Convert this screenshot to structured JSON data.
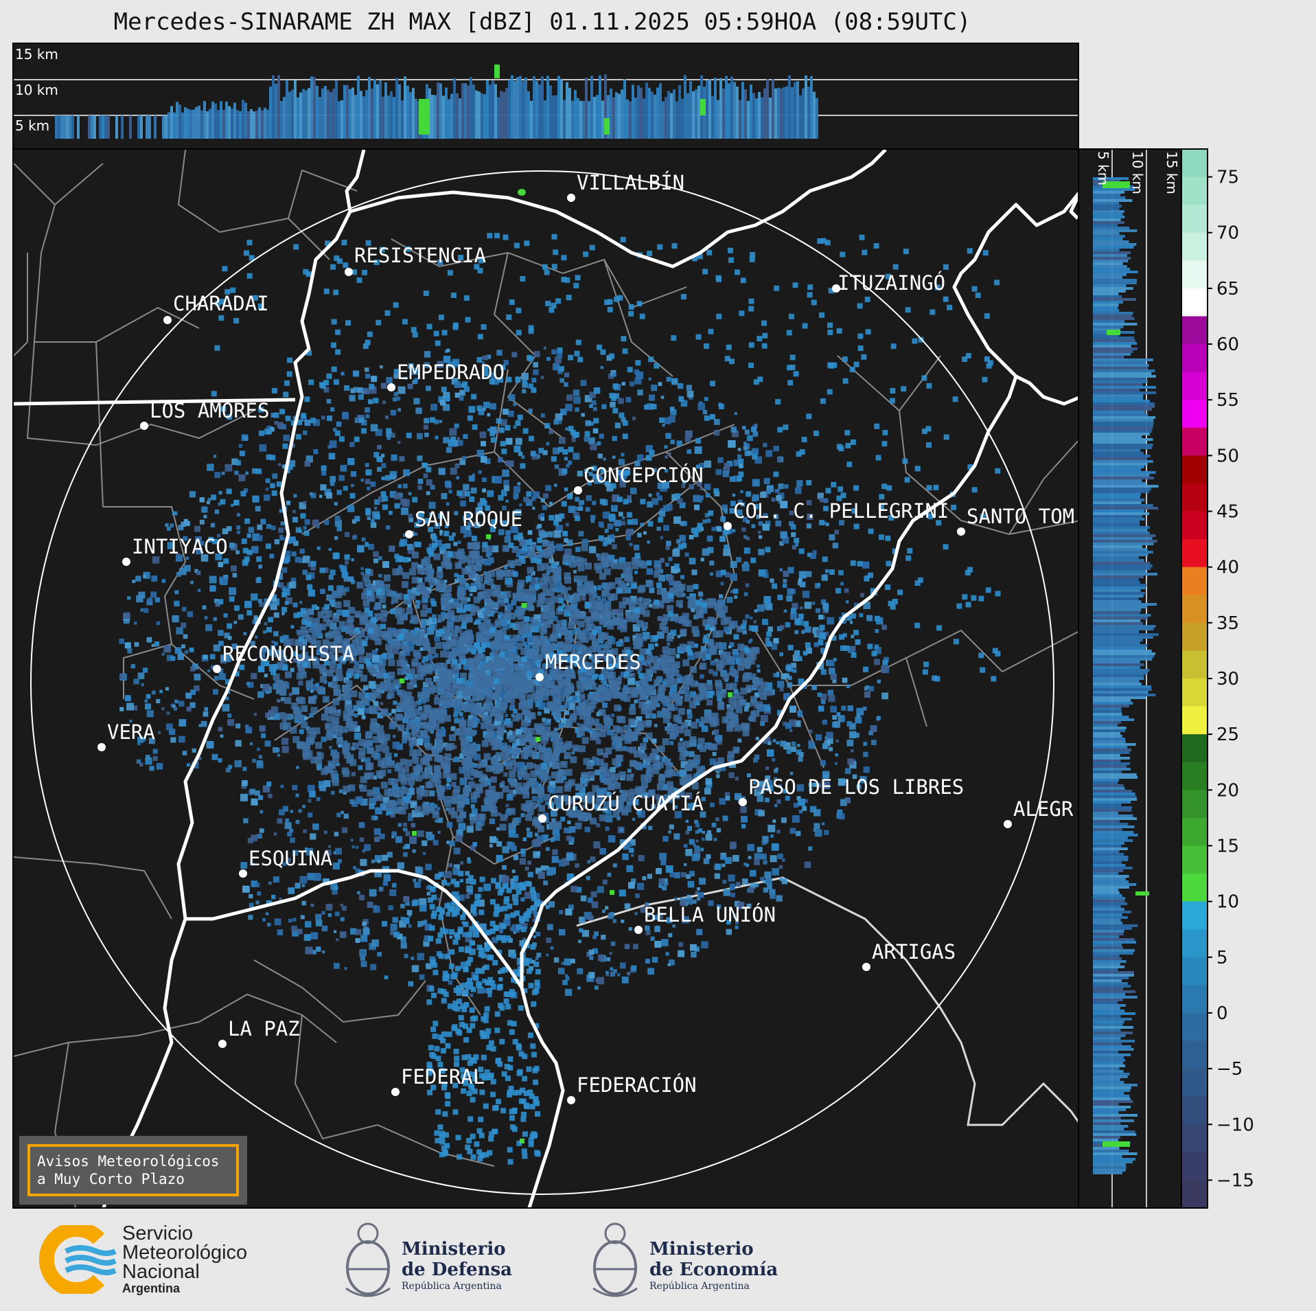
{
  "title": "Mercedes-SINARAME ZH MAX [dBZ] 01.11.2025 05:59HOA (08:59UTC)",
  "top_panel": {
    "height_labels": [
      "15 km",
      "10 km",
      "5 km"
    ]
  },
  "side_panel": {
    "height_labels": [
      "5 km",
      "10 km",
      "15 km"
    ]
  },
  "cities": [
    {
      "name": "VILLALBÍN"
    },
    {
      "name": "RESISTENCIA"
    },
    {
      "name": "CHARADAI"
    },
    {
      "name": "ITUZAINGÓ"
    },
    {
      "name": "EMPEDRADO"
    },
    {
      "name": "LOS AMORES"
    },
    {
      "name": "CONCEPCIÓN"
    },
    {
      "name": "SAN ROQUE"
    },
    {
      "name": "COL. C. PELLEGRINI"
    },
    {
      "name": "SANTO TOM"
    },
    {
      "name": "INTIYACO"
    },
    {
      "name": "RECONQUISTA"
    },
    {
      "name": "MERCEDES"
    },
    {
      "name": "VERA"
    },
    {
      "name": "PASO DE LOS LIBRES"
    },
    {
      "name": "CURUZÚ CUATIÁ"
    },
    {
      "name": "ALEGR"
    },
    {
      "name": "ESQUINA"
    },
    {
      "name": "BELLA UNIÓN"
    },
    {
      "name": "ARTIGAS"
    },
    {
      "name": "LA PAZ"
    },
    {
      "name": "FEDERAL"
    },
    {
      "name": "FEDERACIÓN"
    }
  ],
  "colorbar": {
    "ticks": [
      "75",
      "70",
      "65",
      "60",
      "55",
      "50",
      "45",
      "40",
      "35",
      "30",
      "25",
      "20",
      "15",
      "10",
      "5",
      "0",
      "−5",
      "−10",
      "−15"
    ],
    "colors_top_to_bottom": [
      "#8fd9c0",
      "#9fe2c8",
      "#b3e9d4",
      "#caf0e0",
      "#e6f8ef",
      "#ffffff",
      "#9c0a9c",
      "#b800b8",
      "#d400d4",
      "#f000f0",
      "#c80064",
      "#a00000",
      "#b40010",
      "#cc0020",
      "#e81020",
      "#e88020",
      "#d89020",
      "#c8a028",
      "#c8c030",
      "#d8d838",
      "#f0f040",
      "#206a20",
      "#2a7e22",
      "#33922a",
      "#3ca830",
      "#44bf36",
      "#4cd83c",
      "#2aa8d8",
      "#2896c8",
      "#2888bc",
      "#2a7ab0",
      "#2c6ca0",
      "#2e6094",
      "#305888",
      "#334e7c",
      "#354672",
      "#383e68",
      "#3a3a60"
    ],
    "units": "dBZ"
  },
  "legend_box": {
    "line1": "Avisos Meteorológicos",
    "line2": "a Muy Corto Plazo"
  },
  "footer": {
    "smn": {
      "line1": "Servicio",
      "line2": "Meteorológico",
      "line3": "Nacional",
      "line4": "Argentina"
    },
    "defensa": {
      "line1": "Ministerio",
      "line2": "de Defensa",
      "line3": "República Argentina"
    },
    "economia": {
      "line1": "Ministerio",
      "line2": "de Economía",
      "line3": "República Argentina"
    }
  },
  "colors": {
    "panel_bg": "#1a1a1a",
    "echo_blue": "#2a7ab8",
    "echo_green": "#44d838",
    "border": "#ffffff",
    "province": "#888888",
    "accent_orange": "#f5a300"
  }
}
